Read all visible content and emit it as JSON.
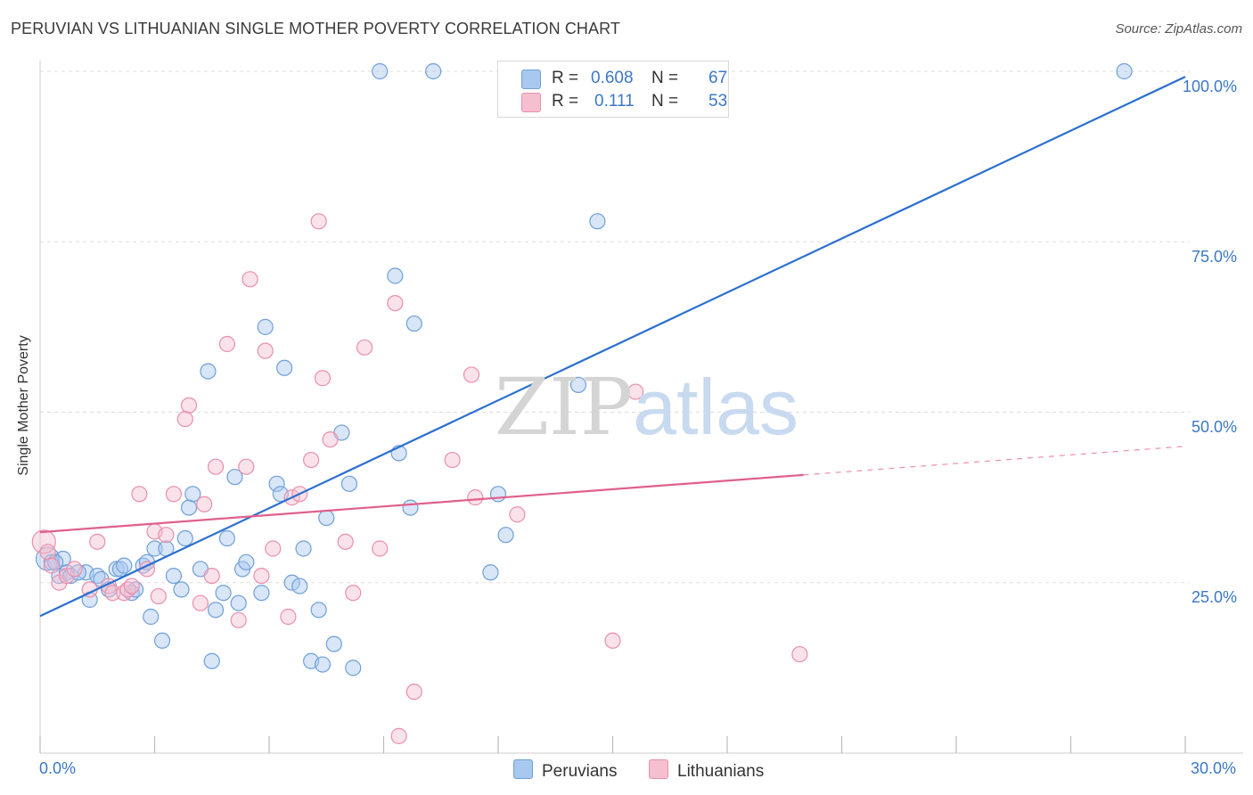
{
  "title": "PERUVIAN VS LITHUANIAN SINGLE MOTHER POVERTY CORRELATION CHART",
  "source": "Source: ZipAtlas.com",
  "watermark": {
    "zip": "ZIP",
    "atlas": "atlas"
  },
  "colors": {
    "peruvians_fill": "#a9c8ef",
    "peruvians_stroke": "#6f9fd8",
    "peruvians_line": "#2a6fd0",
    "lithuanians_fill": "#f5bfd0",
    "lithuanians_stroke": "#e98fab",
    "lithuanians_line": "#e0608a",
    "tick_text": "#3b78c4",
    "grid": "#dddddd"
  },
  "legend": {
    "rows": [
      {
        "r_label": "R =",
        "r_value": "0.608",
        "n_label": "N =",
        "n_value": "67"
      },
      {
        "r_label": "R =",
        "r_value": "0.111",
        "n_label": "N =",
        "n_value": "53"
      }
    ]
  },
  "chart_data": {
    "type": "scatter",
    "ylabel": "Single Mother Poverty",
    "xlim": [
      0,
      30
    ],
    "ylim": [
      0,
      100
    ],
    "x_tick_labels": [
      "0.0%",
      "30.0%"
    ],
    "y_tick_labels": [
      "25.0%",
      "50.0%",
      "75.0%",
      "100.0%"
    ],
    "y_tick_values": [
      25,
      50,
      75,
      100
    ],
    "grid": true,
    "legend_position": "top-center",
    "series": [
      {
        "name": "Peruvians",
        "r": 0.608,
        "n": 67,
        "trend": {
          "x0": 0,
          "y0": 20.1,
          "x1": 30,
          "y1": 99.2,
          "dashed_from": null
        },
        "points": [
          [
            0.2,
            28.5
          ],
          [
            0.3,
            28.0
          ],
          [
            0.5,
            26.0
          ],
          [
            0.6,
            28.5
          ],
          [
            0.7,
            26.5
          ],
          [
            0.8,
            26.0
          ],
          [
            1.2,
            26.5
          ],
          [
            1.3,
            22.5
          ],
          [
            1.5,
            26.0
          ],
          [
            1.6,
            25.5
          ],
          [
            1.8,
            24.0
          ],
          [
            2.0,
            27.0
          ],
          [
            2.1,
            27.0
          ],
          [
            2.2,
            27.5
          ],
          [
            2.4,
            23.5
          ],
          [
            2.5,
            24.0
          ],
          [
            2.7,
            27.5
          ],
          [
            2.8,
            28.0
          ],
          [
            2.9,
            20.0
          ],
          [
            3.0,
            30.0
          ],
          [
            3.2,
            16.5
          ],
          [
            3.3,
            30.0
          ],
          [
            3.5,
            26.0
          ],
          [
            3.7,
            24.0
          ],
          [
            3.8,
            31.5
          ],
          [
            3.9,
            36.0
          ],
          [
            4.0,
            38.0
          ],
          [
            4.2,
            27.0
          ],
          [
            4.4,
            56.0
          ],
          [
            4.5,
            13.5
          ],
          [
            4.6,
            21.0
          ],
          [
            4.8,
            23.5
          ],
          [
            4.9,
            31.5
          ],
          [
            5.1,
            40.5
          ],
          [
            5.2,
            22.0
          ],
          [
            5.3,
            27.0
          ],
          [
            5.4,
            28.0
          ],
          [
            5.8,
            23.5
          ],
          [
            5.9,
            62.5
          ],
          [
            6.2,
            39.5
          ],
          [
            6.3,
            38.0
          ],
          [
            6.4,
            56.5
          ],
          [
            6.6,
            25.0
          ],
          [
            6.8,
            24.5
          ],
          [
            6.9,
            30.0
          ],
          [
            7.1,
            13.5
          ],
          [
            7.3,
            21.0
          ],
          [
            7.4,
            13.0
          ],
          [
            7.5,
            34.5
          ],
          [
            7.7,
            16.0
          ],
          [
            7.9,
            47.0
          ],
          [
            8.1,
            39.5
          ],
          [
            8.2,
            12.5
          ],
          [
            8.9,
            100.0
          ],
          [
            9.3,
            70.0
          ],
          [
            9.4,
            44.0
          ],
          [
            9.7,
            36.0
          ],
          [
            9.8,
            63.0
          ],
          [
            10.3,
            100.0
          ],
          [
            11.8,
            26.5
          ],
          [
            12.0,
            38.0
          ],
          [
            12.2,
            32.0
          ],
          [
            14.1,
            54.0
          ],
          [
            14.6,
            78.0
          ],
          [
            28.4,
            100.0
          ],
          [
            1.0,
            26.5
          ],
          [
            0.4,
            28.0
          ]
        ]
      },
      {
        "name": "Lithuanians",
        "r": 0.111,
        "n": 53,
        "trend": {
          "x0": 0,
          "y0": 32.4,
          "x1": 30,
          "y1": 45.0,
          "dashed_from": 20.0
        },
        "points": [
          [
            0.1,
            31.0
          ],
          [
            0.2,
            29.5
          ],
          [
            0.3,
            27.5
          ],
          [
            0.5,
            25.0
          ],
          [
            0.7,
            26.0
          ],
          [
            0.9,
            27.0
          ],
          [
            1.3,
            24.0
          ],
          [
            1.5,
            31.0
          ],
          [
            1.8,
            24.5
          ],
          [
            1.9,
            23.5
          ],
          [
            2.2,
            23.5
          ],
          [
            2.3,
            24.0
          ],
          [
            2.4,
            24.5
          ],
          [
            2.6,
            38.0
          ],
          [
            2.8,
            27.0
          ],
          [
            3.0,
            32.5
          ],
          [
            3.1,
            23.0
          ],
          [
            3.3,
            32.0
          ],
          [
            3.5,
            38.0
          ],
          [
            3.8,
            49.0
          ],
          [
            3.9,
            51.0
          ],
          [
            4.2,
            22.0
          ],
          [
            4.3,
            36.5
          ],
          [
            4.5,
            26.0
          ],
          [
            4.6,
            42.0
          ],
          [
            4.9,
            60.0
          ],
          [
            5.2,
            19.5
          ],
          [
            5.4,
            42.0
          ],
          [
            5.5,
            69.5
          ],
          [
            5.8,
            26.0
          ],
          [
            5.9,
            59.0
          ],
          [
            6.1,
            30.0
          ],
          [
            6.5,
            20.0
          ],
          [
            6.6,
            37.5
          ],
          [
            6.8,
            38.0
          ],
          [
            7.1,
            43.0
          ],
          [
            7.3,
            78.0
          ],
          [
            7.4,
            55.0
          ],
          [
            7.6,
            46.0
          ],
          [
            8.0,
            31.0
          ],
          [
            8.2,
            23.5
          ],
          [
            8.5,
            59.5
          ],
          [
            8.9,
            30.0
          ],
          [
            9.3,
            66.0
          ],
          [
            9.4,
            2.5
          ],
          [
            9.8,
            9.0
          ],
          [
            10.8,
            43.0
          ],
          [
            11.3,
            55.5
          ],
          [
            11.4,
            37.5
          ],
          [
            12.5,
            35.0
          ],
          [
            15.0,
            16.5
          ],
          [
            15.6,
            53.0
          ],
          [
            19.9,
            14.5
          ]
        ]
      }
    ]
  },
  "bottom_legend": [
    {
      "label": "Peruvians"
    },
    {
      "label": "Lithuanians"
    }
  ]
}
